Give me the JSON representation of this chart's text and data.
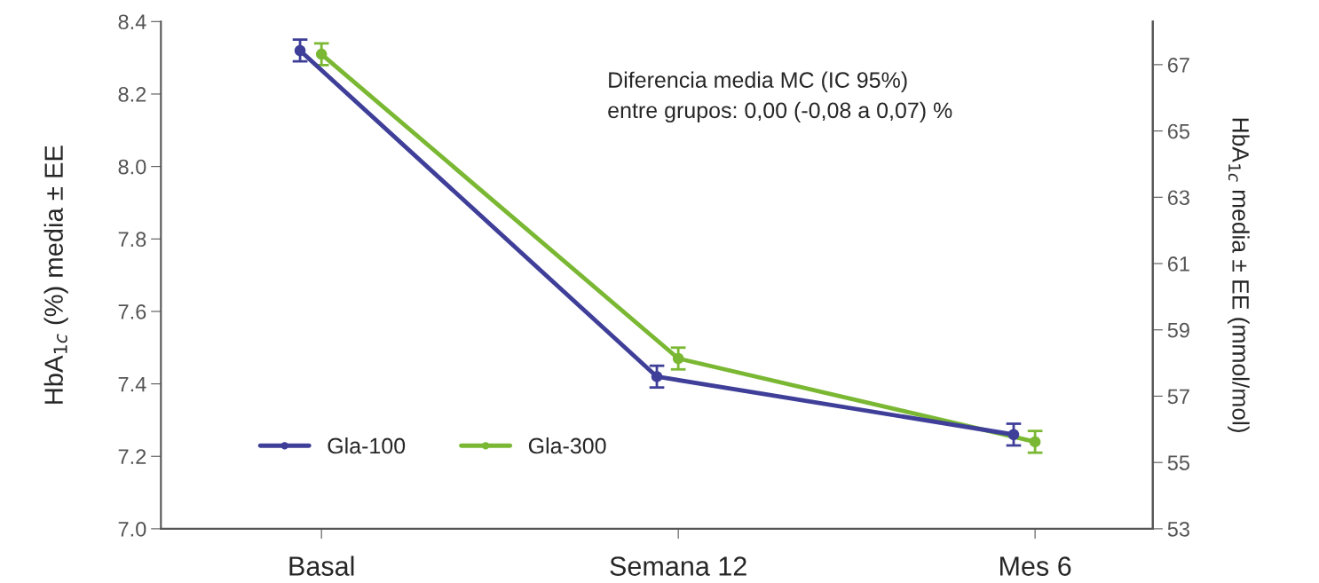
{
  "chart_data": {
    "type": "line",
    "categories": [
      "Basal",
      "Semana 12",
      "Mes 6"
    ],
    "series": [
      {
        "name": "Gla-100",
        "color": "#3f3f99",
        "values": [
          8.32,
          7.42,
          7.26
        ],
        "errors": [
          0.03,
          0.03,
          0.03
        ]
      },
      {
        "name": "Gla-300",
        "color": "#7ab833",
        "values": [
          8.31,
          7.47,
          7.24
        ],
        "errors": [
          0.03,
          0.03,
          0.03
        ]
      }
    ],
    "ylabel": "HbA$_{1c}$ (%) media ± EE",
    "y2label": "HbA$_{1c}$ media ± EE (mmol/mol)",
    "ylim": [
      7.0,
      8.4
    ],
    "yticks": [
      {
        "value": 7.0,
        "label": "7.0"
      },
      7.2,
      7.4,
      7.6,
      7.8,
      {
        "value": 8.0,
        "label": "8.0"
      },
      8.2,
      8.4
    ],
    "y2lim": [
      53,
      68.3
    ],
    "y2ticks": [
      53,
      55,
      57,
      59,
      61,
      63,
      65,
      67
    ],
    "annotations": [
      "Diferencia media MC (IC 95%)\nentre grupos: 0,00 (-0,08 a 0,07) %"
    ],
    "legend": "bottom left",
    "marker": "circle",
    "line_style": "solid",
    "grid": false
  }
}
